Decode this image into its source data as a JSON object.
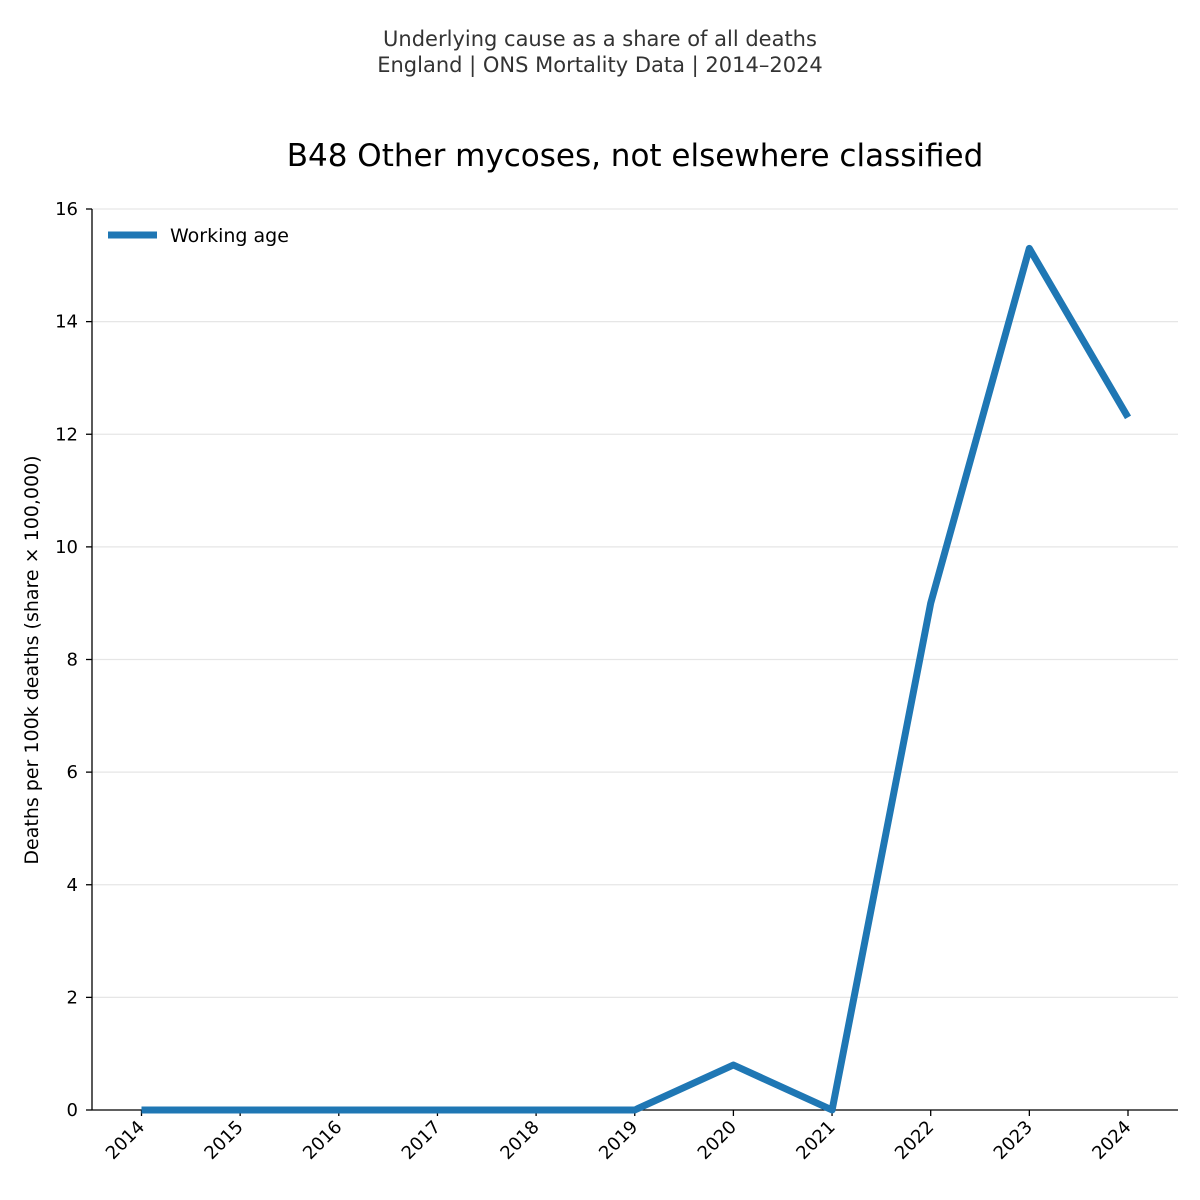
{
  "header": {
    "line1": "Underlying cause as a share of all deaths",
    "line2": "England | ONS Mortality Data | 2014–2024"
  },
  "colors": {
    "series": "#1f77b4",
    "grid": "#e6e6e6",
    "header_text": "#333333"
  },
  "chart_data": {
    "type": "line",
    "title": "B48 Other mycoses, not elsewhere classified",
    "xlabel": "",
    "ylabel": "Deaths per 100k deaths (share × 100,000)",
    "categories": [
      "2014",
      "2015",
      "2016",
      "2017",
      "2018",
      "2019",
      "2020",
      "2021",
      "2022",
      "2023",
      "2024"
    ],
    "series": [
      {
        "name": "Working age",
        "values": [
          0,
          0,
          0,
          0,
          0,
          0,
          0.8,
          0,
          9.0,
          15.3,
          12.3
        ]
      }
    ],
    "ylim": [
      0,
      16
    ],
    "yticks": [
      0,
      2,
      4,
      6,
      8,
      10,
      12,
      14,
      16
    ],
    "grid": "horizontal",
    "legend_position": "top-left"
  }
}
